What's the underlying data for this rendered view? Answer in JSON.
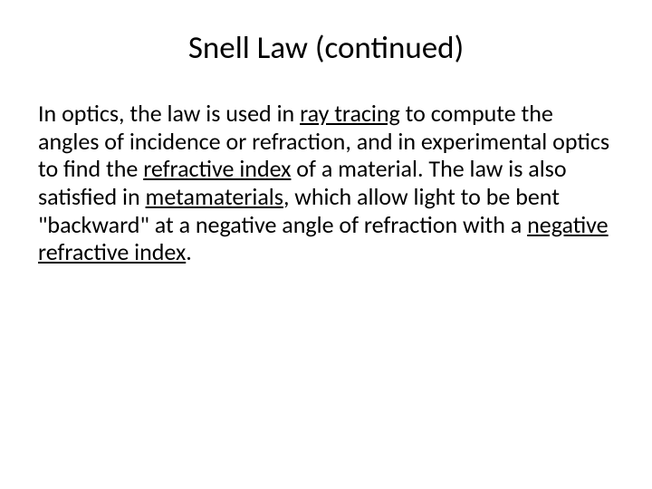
{
  "slide": {
    "title": "Snell Law (continued)",
    "body": {
      "p1_a": "In optics, the law is used in ",
      "link1": "ray tracing",
      "p1_b": " to compute the angles of incidence or refraction, and in experimental optics to find the ",
      "link2": "refractive index",
      "p1_c": " of a material. The law is also satisfied in ",
      "link3": "metamaterials",
      "p1_d": ", which allow light to be bent \"backward\" at a negative angle of refraction with a ",
      "link4": "negative refractive index",
      "p1_e": "."
    },
    "colors": {
      "background": "#ffffff",
      "text": "#000000"
    },
    "typography": {
      "title_fontsize": 35,
      "body_fontsize": 26,
      "font_family": "Calibri"
    }
  }
}
